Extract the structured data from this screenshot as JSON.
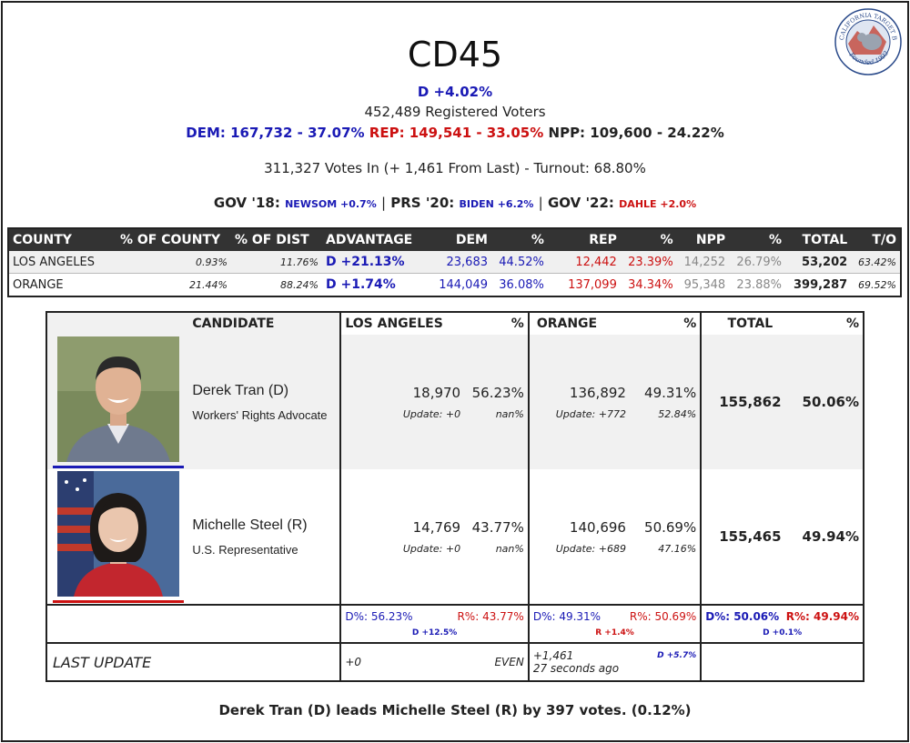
{
  "header": {
    "title": "CD45",
    "margin": "D +4.02%",
    "registered": "452,489 Registered Voters",
    "dem": "DEM: 167,732 - 37.07%",
    "rep": "REP: 149,541 - 33.05%",
    "npp": "NPP: 109,600 - 24.22%",
    "votes_in": "311,327 Votes In (+ 1,461 From Last) - Turnout: 68.80%",
    "gov18_label": "GOV '18:",
    "gov18_val": "NEWSOM +0.7%",
    "prs20_label": "PRS '20:",
    "prs20_val": "BIDEN +6.2%",
    "gov22_label": "GOV '22:",
    "gov22_val": "DAHLE +2.0%",
    "sep": "|"
  },
  "logo": {
    "icon": "california-target-book-seal",
    "top_text": "CALIFORNIA TARGET BOOK",
    "bottom_text": "Founded 1993"
  },
  "county_table": {
    "headers": [
      "COUNTY",
      "% OF COUNTY",
      "% OF DIST",
      "ADVANTAGE",
      "DEM",
      "%",
      "REP",
      "%",
      "NPP",
      "%",
      "TOTAL",
      "T/O"
    ],
    "rows": [
      [
        "LOS ANGELES",
        "0.93%",
        "11.76%",
        "D +21.13%",
        "23,683",
        "44.52%",
        "12,442",
        "23.39%",
        "14,252",
        "26.79%",
        "53,202",
        "63.42%"
      ],
      [
        "ORANGE",
        "21.44%",
        "88.24%",
        "D +1.74%",
        "144,049",
        "36.08%",
        "137,099",
        "34.34%",
        "95,348",
        "23.88%",
        "399,287",
        "69.52%"
      ]
    ]
  },
  "candidates_table": {
    "headers": {
      "candidate": "CANDIDATE",
      "la": "LOS ANGELES",
      "pct1": "%",
      "orange": "ORANGE",
      "pct2": "%",
      "total": "TOTAL",
      "pct3": "%"
    },
    "candidates": [
      {
        "name": "Derek Tran (D)",
        "desc": "Workers' Rights Advocate",
        "la_votes": "18,970",
        "la_pct": "56.23%",
        "la_update": "Update: +0",
        "la_upd_pct": "nan%",
        "or_votes": "136,892",
        "or_pct": "49.31%",
        "or_update": "Update: +772",
        "or_upd_pct": "52.84%",
        "total": "155,862",
        "total_pct": "50.06%",
        "underline": "#1a1ab5"
      },
      {
        "name": "Michelle Steel (R)",
        "desc": "U.S. Representative",
        "la_votes": "14,769",
        "la_pct": "43.77%",
        "la_update": "Update: +0",
        "la_upd_pct": "nan%",
        "or_votes": "140,696",
        "or_pct": "50.69%",
        "or_update": "Update: +689",
        "or_upd_pct": "47.16%",
        "total": "155,465",
        "total_pct": "49.94%",
        "underline": "#cc1111"
      }
    ],
    "summary": {
      "la_d": "D%: 56.23%",
      "la_r": "R%: 43.77%",
      "la_adv": "D +12.5%",
      "or_d": "D%: 49.31%",
      "or_r": "R%: 50.69%",
      "or_adv": "R +1.4%",
      "tot_d": "D%: 50.06%",
      "tot_r": "R%: 49.94%",
      "tot_adv": "D +0.1%"
    },
    "last_update": {
      "label": "LAST UPDATE",
      "la": "+0",
      "la_right": "EVEN",
      "or_top": "+1,461",
      "or_adv": "D +5.7%",
      "or_time": "27 seconds ago"
    }
  },
  "footer": "Derek Tran (D) leads Michelle Steel (R) by 397 votes. (0.12%)"
}
